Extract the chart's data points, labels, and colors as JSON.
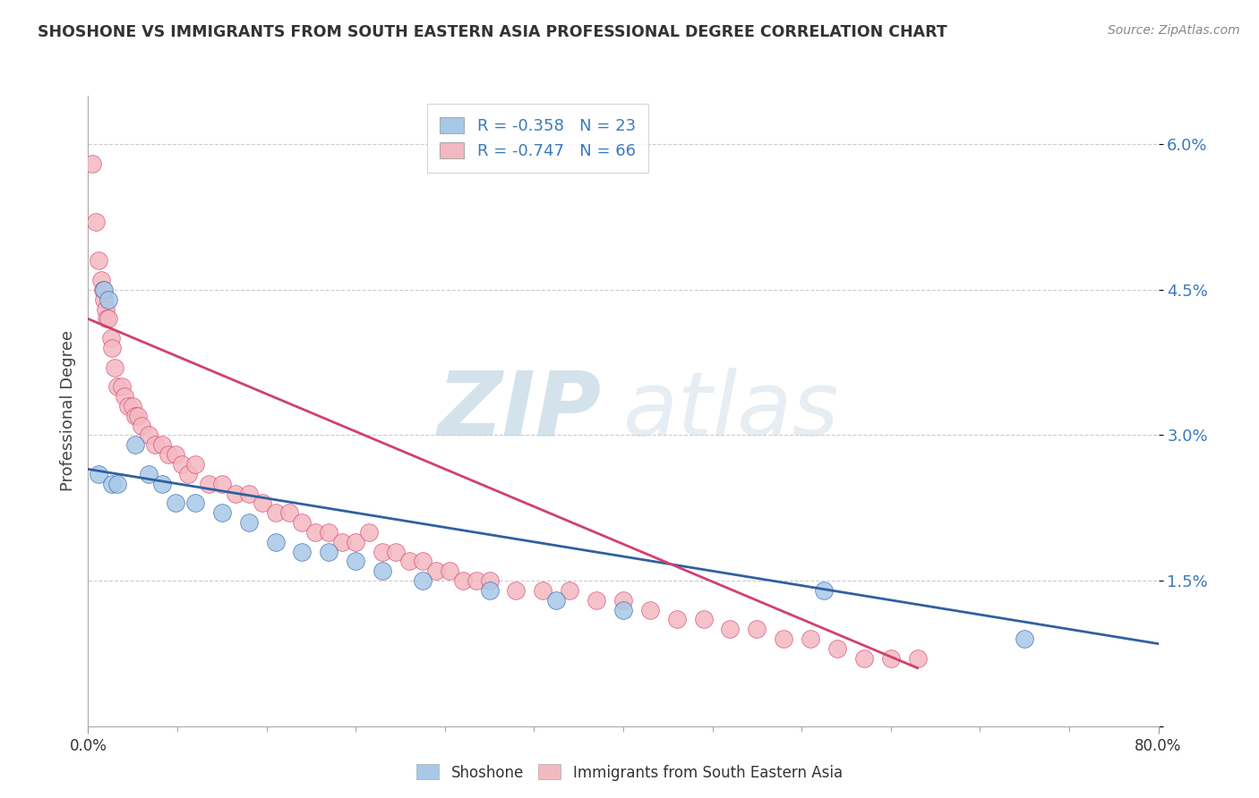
{
  "title": "SHOSHONE VS IMMIGRANTS FROM SOUTH EASTERN ASIA PROFESSIONAL DEGREE CORRELATION CHART",
  "source": "Source: ZipAtlas.com",
  "ylabel": "Professional Degree",
  "y_ticks": [
    0.0,
    1.5,
    3.0,
    4.5,
    6.0
  ],
  "y_tick_labels": [
    "",
    "1.5%",
    "3.0%",
    "4.5%",
    "6.0%"
  ],
  "x_range": [
    0,
    80
  ],
  "y_range": [
    0,
    6.5
  ],
  "shoshone_R": -0.358,
  "shoshone_N": 23,
  "immigrants_R": -0.747,
  "immigrants_N": 66,
  "shoshone_color": "#a8c8e8",
  "immigrants_color": "#f4b8c0",
  "shoshone_line_color": "#3060a0",
  "immigrants_line_color": "#d04070",
  "legend_label_shoshone": "Shoshone",
  "legend_label_immigrants": "Immigrants from South Eastern Asia",
  "watermark_zip": "ZIP",
  "watermark_atlas": "atlas",
  "background_color": "#ffffff",
  "shoshone_x": [
    0.8,
    1.2,
    1.5,
    1.8,
    2.2,
    3.5,
    4.5,
    5.5,
    6.5,
    8.0,
    10.0,
    12.0,
    14.0,
    16.0,
    18.0,
    20.0,
    22.0,
    25.0,
    30.0,
    35.0,
    40.0,
    55.0,
    70.0
  ],
  "shoshone_y": [
    2.6,
    4.5,
    4.4,
    2.5,
    2.5,
    2.9,
    2.6,
    2.5,
    2.3,
    2.3,
    2.2,
    2.1,
    1.9,
    1.8,
    1.8,
    1.7,
    1.6,
    1.5,
    1.4,
    1.3,
    1.2,
    1.4,
    0.9
  ],
  "immigrants_x": [
    0.3,
    0.6,
    0.8,
    1.0,
    1.1,
    1.2,
    1.3,
    1.4,
    1.5,
    1.7,
    1.8,
    2.0,
    2.2,
    2.5,
    2.7,
    3.0,
    3.3,
    3.5,
    3.7,
    4.0,
    4.5,
    5.0,
    5.5,
    6.0,
    6.5,
    7.0,
    7.5,
    8.0,
    9.0,
    10.0,
    11.0,
    12.0,
    13.0,
    14.0,
    15.0,
    16.0,
    17.0,
    18.0,
    19.0,
    20.0,
    21.0,
    22.0,
    23.0,
    24.0,
    25.0,
    26.0,
    27.0,
    28.0,
    29.0,
    30.0,
    32.0,
    34.0,
    36.0,
    38.0,
    40.0,
    42.0,
    44.0,
    46.0,
    48.0,
    50.0,
    52.0,
    54.0,
    56.0,
    58.0,
    60.0,
    62.0
  ],
  "immigrants_y": [
    5.8,
    5.2,
    4.8,
    4.6,
    4.5,
    4.4,
    4.3,
    4.2,
    4.2,
    4.0,
    3.9,
    3.7,
    3.5,
    3.5,
    3.4,
    3.3,
    3.3,
    3.2,
    3.2,
    3.1,
    3.0,
    2.9,
    2.9,
    2.8,
    2.8,
    2.7,
    2.6,
    2.7,
    2.5,
    2.5,
    2.4,
    2.4,
    2.3,
    2.2,
    2.2,
    2.1,
    2.0,
    2.0,
    1.9,
    1.9,
    2.0,
    1.8,
    1.8,
    1.7,
    1.7,
    1.6,
    1.6,
    1.5,
    1.5,
    1.5,
    1.4,
    1.4,
    1.4,
    1.3,
    1.3,
    1.2,
    1.1,
    1.1,
    1.0,
    1.0,
    0.9,
    0.9,
    0.8,
    0.7,
    0.7,
    0.7
  ],
  "shoshone_line_x0": 0,
  "shoshone_line_y0": 2.65,
  "shoshone_line_x1": 80,
  "shoshone_line_y1": 0.85,
  "immigrants_line_x0": 0,
  "immigrants_line_y0": 4.2,
  "immigrants_line_x1": 62,
  "immigrants_line_y1": 0.6
}
